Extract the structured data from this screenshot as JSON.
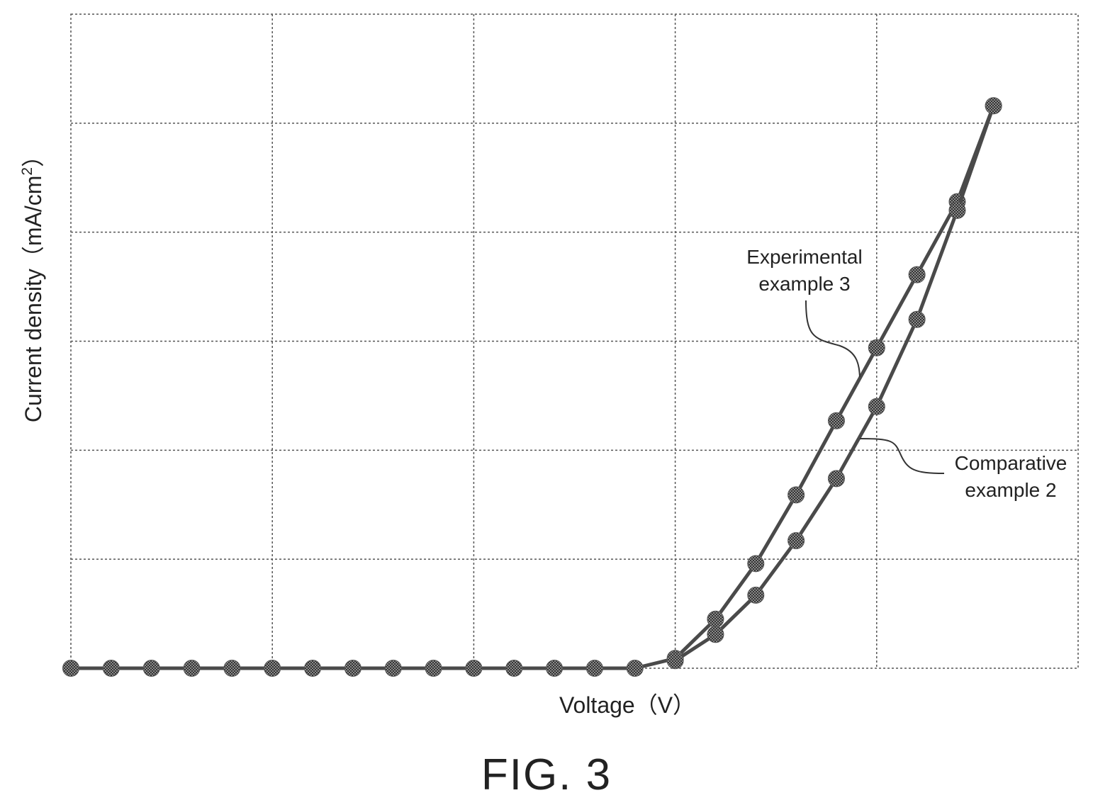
{
  "figure": {
    "caption": "FIG. 3"
  },
  "chart_data": {
    "type": "line",
    "title": "",
    "xlabel": "Voltage（V）",
    "ylabel_main": "Current density（mA/cm",
    "ylabel_sup": "2",
    "ylabel_close": "）",
    "xlim": [
      0,
      25
    ],
    "ylim": [
      0,
      6
    ],
    "x_gridlines": [
      5,
      10,
      15,
      20
    ],
    "y_gridlines": [
      1,
      2,
      3,
      4,
      5
    ],
    "grid": true,
    "series": [
      {
        "name": "Experimental example 3",
        "label_lines": [
          "Experimental",
          "example 3"
        ],
        "points": [
          [
            0,
            0
          ],
          [
            1,
            0
          ],
          [
            2,
            0
          ],
          [
            3,
            0
          ],
          [
            4,
            0
          ],
          [
            5,
            0
          ],
          [
            6,
            0
          ],
          [
            7,
            0
          ],
          [
            8,
            0
          ],
          [
            9,
            0
          ],
          [
            10,
            0
          ],
          [
            11,
            0
          ],
          [
            12,
            0
          ],
          [
            13,
            0
          ],
          [
            14,
            0
          ],
          [
            15,
            0.09
          ],
          [
            16,
            0.45
          ],
          [
            17,
            0.96
          ],
          [
            18,
            1.59
          ],
          [
            19,
            2.27
          ],
          [
            20,
            2.94
          ],
          [
            21,
            3.61
          ],
          [
            22,
            4.28
          ],
          [
            22.9,
            5.16
          ]
        ]
      },
      {
        "name": "Comparative example 2",
        "label_lines": [
          "Comparative",
          "example 2"
        ],
        "points": [
          [
            15,
            0.07
          ],
          [
            16,
            0.31
          ],
          [
            17,
            0.67
          ],
          [
            18,
            1.17
          ],
          [
            19,
            1.74
          ],
          [
            20,
            2.4
          ],
          [
            21,
            3.2
          ],
          [
            22,
            4.2
          ],
          [
            22.9,
            5.16
          ]
        ]
      }
    ]
  }
}
